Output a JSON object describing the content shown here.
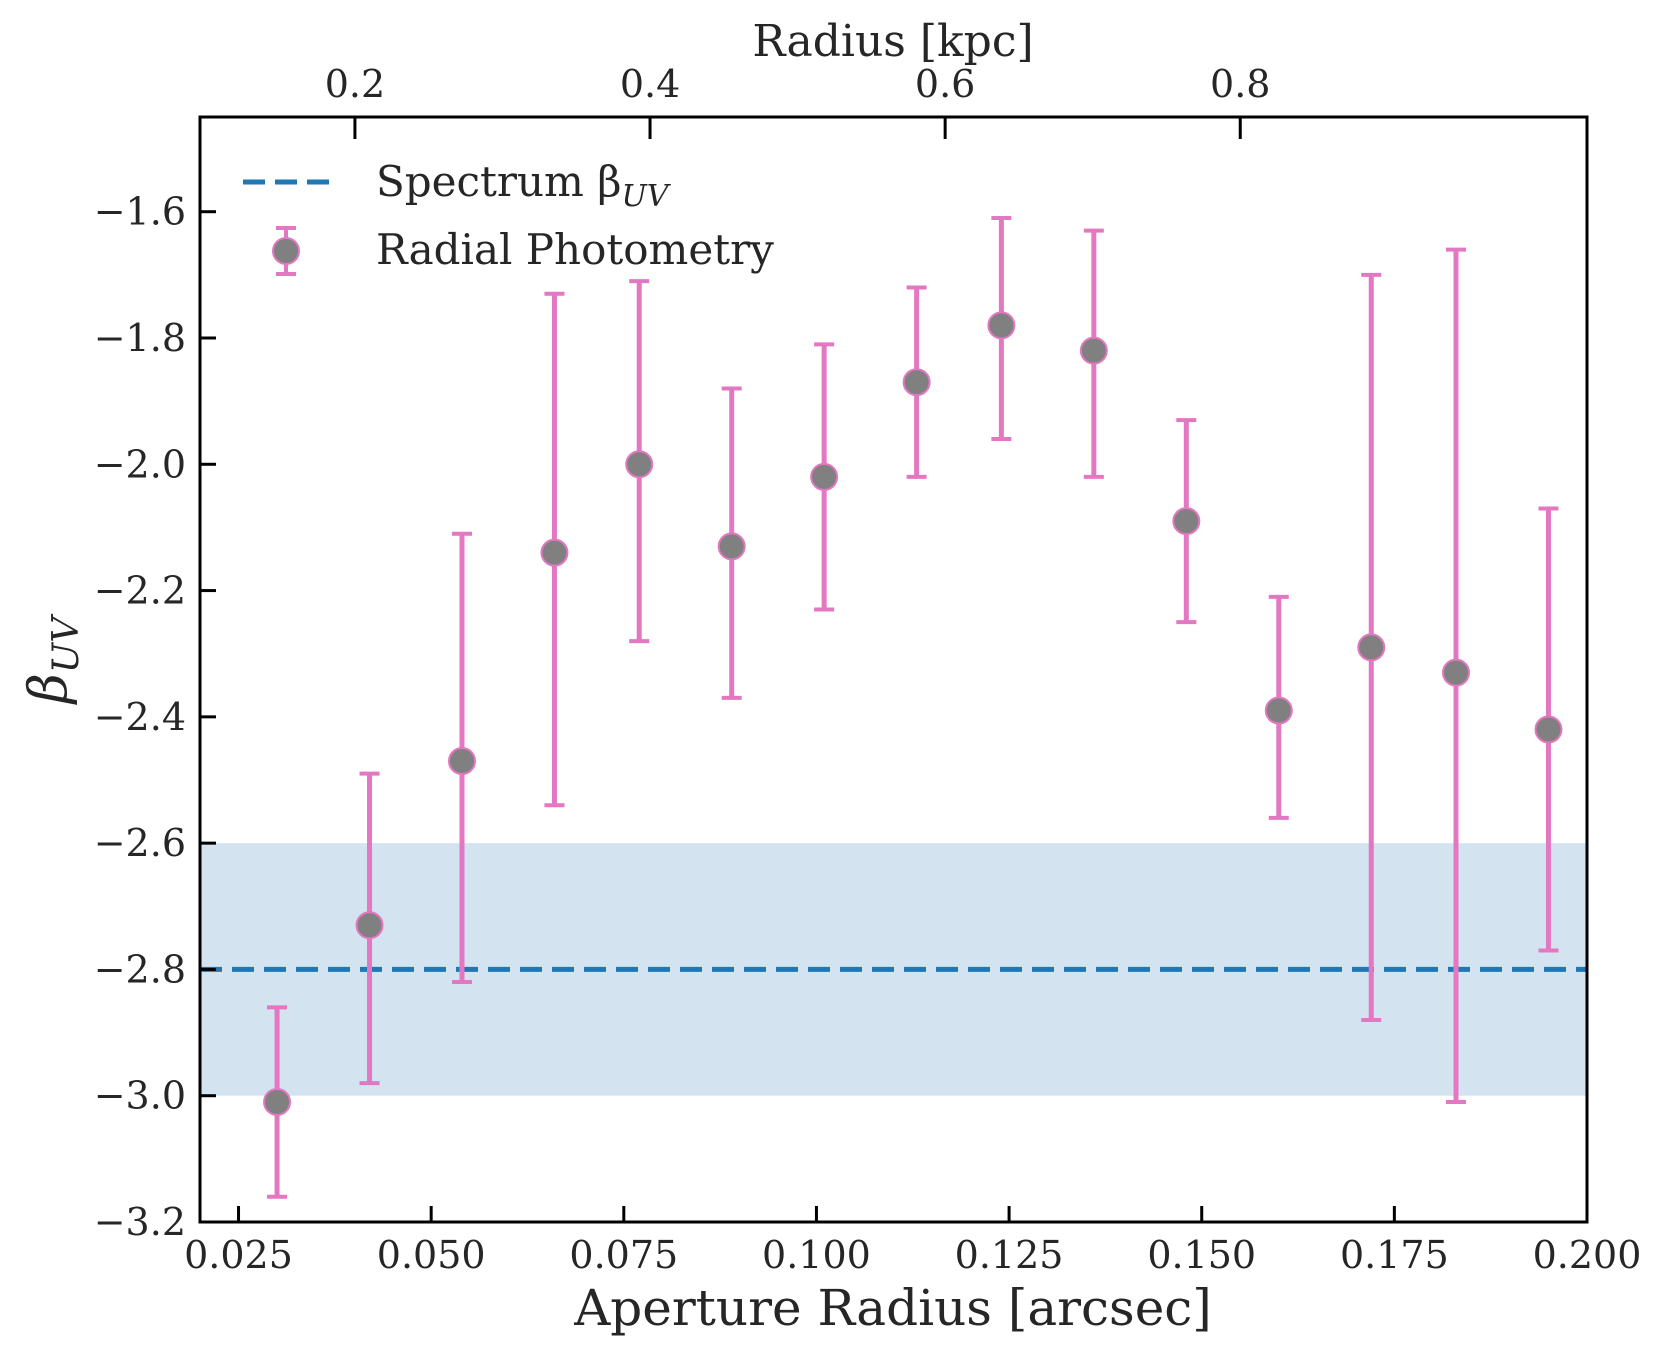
{
  "chart_data": {
    "type": "scatter",
    "xlabel": "Aperture Radius [arcsec]",
    "ylabel": "β",
    "ylabel_sub": "UV",
    "top_xlabel": "Radius [kpc]",
    "xlim": [
      0.02,
      0.2
    ],
    "ylim": [
      -3.2,
      -1.45
    ],
    "top_xlim": [
      0.095,
      1.035
    ],
    "x_ticks": [
      0.025,
      0.05,
      0.075,
      0.1,
      0.125,
      0.15,
      0.175,
      0.2
    ],
    "x_tick_labels": [
      "0.025",
      "0.050",
      "0.075",
      "0.100",
      "0.125",
      "0.150",
      "0.175",
      "0.200"
    ],
    "y_ticks": [
      -3.2,
      -3.0,
      -2.8,
      -2.6,
      -2.4,
      -2.2,
      -2.0,
      -1.8,
      -1.6
    ],
    "y_tick_labels": [
      "−3.2",
      "−3.0",
      "−2.8",
      "−2.6",
      "−2.4",
      "−2.2",
      "−2.0",
      "−1.8",
      "−1.6"
    ],
    "top_x_ticks": [
      0.2,
      0.4,
      0.6,
      0.8
    ],
    "top_x_tick_labels": [
      "0.2",
      "0.4",
      "0.6",
      "0.8"
    ],
    "grid": false,
    "legend_position": "top-left",
    "spectrum": {
      "name": "Spectrum β",
      "name_sub": "UV",
      "value": -2.8,
      "band": [
        -3.0,
        -2.6
      ],
      "color": "#1f77b4",
      "band_color": "#d4e3f0"
    },
    "series": [
      {
        "name": "Radial Photometry",
        "marker_color": "#808080",
        "edge_color": "#e377c2",
        "error_color": "#e377c2",
        "points": [
          {
            "x": 0.03,
            "y": -3.01,
            "ylo": -3.16,
            "yhi": -2.86
          },
          {
            "x": 0.042,
            "y": -2.73,
            "ylo": -2.98,
            "yhi": -2.49
          },
          {
            "x": 0.054,
            "y": -2.47,
            "ylo": -2.82,
            "yhi": -2.11
          },
          {
            "x": 0.066,
            "y": -2.14,
            "ylo": -2.54,
            "yhi": -1.73
          },
          {
            "x": 0.077,
            "y": -2.0,
            "ylo": -2.28,
            "yhi": -1.71
          },
          {
            "x": 0.089,
            "y": -2.13,
            "ylo": -2.37,
            "yhi": -1.88
          },
          {
            "x": 0.101,
            "y": -2.02,
            "ylo": -2.23,
            "yhi": -1.81
          },
          {
            "x": 0.113,
            "y": -1.87,
            "ylo": -2.02,
            "yhi": -1.72
          },
          {
            "x": 0.124,
            "y": -1.78,
            "ylo": -1.96,
            "yhi": -1.61
          },
          {
            "x": 0.136,
            "y": -1.82,
            "ylo": -2.02,
            "yhi": -1.63
          },
          {
            "x": 0.148,
            "y": -2.09,
            "ylo": -2.25,
            "yhi": -1.93
          },
          {
            "x": 0.16,
            "y": -2.39,
            "ylo": -2.56,
            "yhi": -2.21
          },
          {
            "x": 0.172,
            "y": -2.29,
            "ylo": -2.88,
            "yhi": -1.7
          },
          {
            "x": 0.183,
            "y": -2.33,
            "ylo": -3.01,
            "yhi": -1.66
          },
          {
            "x": 0.195,
            "y": -2.42,
            "ylo": -2.77,
            "yhi": -2.07
          }
        ]
      }
    ]
  }
}
